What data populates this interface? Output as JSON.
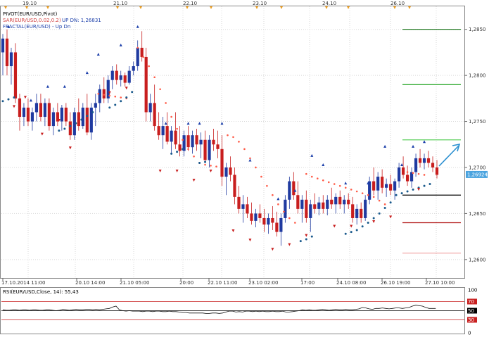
{
  "legend": {
    "line1": "PIVOT(EUR/USD,Pivot)",
    "line2": "SAR(EUR/USD,0.02,0.2)",
    "line2_status": "UP  DN: 1,26831",
    "line3": "FRACTAL(EUR/USD) - Up  Dn"
  },
  "top_dates": [
    "19.10",
    "21.10",
    "22.10",
    "23.10",
    "24.10",
    "26.10"
  ],
  "x_labels": [
    "17.10.2014 11:00",
    "20.10 14:00",
    "21.10 05:00",
    "20:00",
    "22.10 11:00",
    "23.10 02:00",
    "17:00",
    "24.10 08:00",
    "26.10 19:00",
    "27.10 10:00"
  ],
  "price_ticks": [
    "1,2850",
    "1,2800",
    "1,2750",
    "1,2700",
    "1,2650",
    "1,2600"
  ],
  "current_price": "1,26924",
  "rsi": {
    "title": "RSI(EUR/USD,Close, 14): 55,43",
    "ticks": [
      "100",
      "70",
      "50",
      "30",
      "0"
    ]
  },
  "colors": {
    "bull": "#1f3aa0",
    "bear": "#c81e1e",
    "sar_bear": "#ff5a46",
    "sar_bull": "#1a5a8c",
    "fractal_up": "#1c3faa",
    "fractal_dn": "#c81e1e",
    "price_label_bg": "#4aa3df"
  },
  "chart_data": {
    "type": "candlestick",
    "ylim": [
      1.258,
      1.2875
    ],
    "ohlc": [
      [
        1.2825,
        1.2845,
        1.28,
        1.284
      ],
      [
        1.284,
        1.285,
        1.28,
        1.281
      ],
      [
        1.281,
        1.283,
        1.279,
        1.2825
      ],
      [
        1.2825,
        1.2835,
        1.277,
        1.2775
      ],
      [
        1.2775,
        1.278,
        1.274,
        1.2755
      ],
      [
        1.2755,
        1.277,
        1.2745,
        1.2765
      ],
      [
        1.2765,
        1.2775,
        1.2745,
        1.275
      ],
      [
        1.275,
        1.2765,
        1.274,
        1.276
      ],
      [
        1.276,
        1.278,
        1.275,
        1.277
      ],
      [
        1.277,
        1.278,
        1.275,
        1.2755
      ],
      [
        1.2755,
        1.2775,
        1.2745,
        1.277
      ],
      [
        1.277,
        1.2775,
        1.274,
        1.2745
      ],
      [
        1.2745,
        1.2765,
        1.2735,
        1.276
      ],
      [
        1.276,
        1.277,
        1.2745,
        1.275
      ],
      [
        1.275,
        1.2768,
        1.274,
        1.2765
      ],
      [
        1.2765,
        1.277,
        1.2745,
        1.275
      ],
      [
        1.275,
        1.276,
        1.273,
        1.2735
      ],
      [
        1.2735,
        1.2765,
        1.273,
        1.276
      ],
      [
        1.276,
        1.2775,
        1.274,
        1.2745
      ],
      [
        1.2745,
        1.277,
        1.2742,
        1.2765
      ],
      [
        1.2765,
        1.278,
        1.2735,
        1.2738
      ],
      [
        1.2738,
        1.277,
        1.273,
        1.2765
      ],
      [
        1.2765,
        1.278,
        1.2745,
        1.277
      ],
      [
        1.277,
        1.279,
        1.276,
        1.2785
      ],
      [
        1.2785,
        1.2798,
        1.277,
        1.2775
      ],
      [
        1.2775,
        1.28,
        1.277,
        1.2795
      ],
      [
        1.2795,
        1.281,
        1.2785,
        1.2805
      ],
      [
        1.2805,
        1.2812,
        1.279,
        1.2795
      ],
      [
        1.2795,
        1.2805,
        1.2788,
        1.28
      ],
      [
        1.28,
        1.2803,
        1.2788,
        1.2792
      ],
      [
        1.2792,
        1.281,
        1.279,
        1.2805
      ],
      [
        1.2805,
        1.2815,
        1.28,
        1.281
      ],
      [
        1.281,
        1.2838,
        1.2805,
        1.283
      ],
      [
        1.283,
        1.2848,
        1.2815,
        1.282
      ],
      [
        1.282,
        1.283,
        1.275,
        1.276
      ],
      [
        1.276,
        1.278,
        1.275,
        1.277
      ],
      [
        1.277,
        1.279,
        1.274,
        1.2745
      ],
      [
        1.2745,
        1.276,
        1.273,
        1.2735
      ],
      [
        1.2735,
        1.2755,
        1.272,
        1.2745
      ],
      [
        1.2745,
        1.276,
        1.2725,
        1.2728
      ],
      [
        1.2728,
        1.2745,
        1.2715,
        1.274
      ],
      [
        1.274,
        1.276,
        1.272,
        1.2725
      ],
      [
        1.2725,
        1.2745,
        1.2712,
        1.2718
      ],
      [
        1.2718,
        1.274,
        1.2712,
        1.2735
      ],
      [
        1.2735,
        1.2745,
        1.2718,
        1.2722
      ],
      [
        1.2722,
        1.274,
        1.2715,
        1.2735
      ],
      [
        1.2735,
        1.2742,
        1.2718,
        1.2725
      ],
      [
        1.2725,
        1.2738,
        1.271,
        1.273
      ],
      [
        1.273,
        1.274,
        1.2705,
        1.2708
      ],
      [
        1.2708,
        1.2735,
        1.27,
        1.273
      ],
      [
        1.273,
        1.2742,
        1.2718,
        1.2725
      ],
      [
        1.2725,
        1.274,
        1.271,
        1.272
      ],
      [
        1.272,
        1.2735,
        1.268,
        1.269
      ],
      [
        1.269,
        1.2705,
        1.267,
        1.27
      ],
      [
        1.27,
        1.2712,
        1.2685,
        1.2692
      ],
      [
        1.2692,
        1.27,
        1.266,
        1.2668
      ],
      [
        1.2668,
        1.268,
        1.265,
        1.2655
      ],
      [
        1.2655,
        1.267,
        1.264,
        1.266
      ],
      [
        1.266,
        1.2668,
        1.2645,
        1.265
      ],
      [
        1.265,
        1.2662,
        1.2638,
        1.2642
      ],
      [
        1.2642,
        1.2655,
        1.2635,
        1.265
      ],
      [
        1.265,
        1.266,
        1.264,
        1.2645
      ],
      [
        1.2645,
        1.2655,
        1.263,
        1.2638
      ],
      [
        1.2638,
        1.265,
        1.2628,
        1.2645
      ],
      [
        1.2645,
        1.2658,
        1.2632,
        1.264
      ],
      [
        1.264,
        1.2652,
        1.2625,
        1.263
      ],
      [
        1.263,
        1.265,
        1.2615,
        1.2645
      ],
      [
        1.2645,
        1.267,
        1.264,
        1.2665
      ],
      [
        1.2665,
        1.269,
        1.2655,
        1.2685
      ],
      [
        1.2685,
        1.2695,
        1.2665,
        1.267
      ],
      [
        1.267,
        1.2685,
        1.265,
        1.2655
      ],
      [
        1.2655,
        1.267,
        1.264,
        1.2665
      ],
      [
        1.2665,
        1.2675,
        1.264,
        1.2645
      ],
      [
        1.2645,
        1.2665,
        1.263,
        1.266
      ],
      [
        1.266,
        1.2672,
        1.265,
        1.2655
      ],
      [
        1.2655,
        1.2668,
        1.2648,
        1.2662
      ],
      [
        1.2662,
        1.267,
        1.265,
        1.2655
      ],
      [
        1.2655,
        1.267,
        1.2648,
        1.2665
      ],
      [
        1.2665,
        1.2678,
        1.2655,
        1.266
      ],
      [
        1.266,
        1.2672,
        1.265,
        1.2668
      ],
      [
        1.2668,
        1.2675,
        1.2655,
        1.266
      ],
      [
        1.266,
        1.267,
        1.265,
        1.2665
      ],
      [
        1.2665,
        1.2672,
        1.2655,
        1.266
      ],
      [
        1.266,
        1.2668,
        1.264,
        1.2645
      ],
      [
        1.2645,
        1.266,
        1.2638,
        1.2655
      ],
      [
        1.2655,
        1.2662,
        1.264,
        1.2645
      ],
      [
        1.2645,
        1.267,
        1.2642,
        1.2665
      ],
      [
        1.2665,
        1.269,
        1.266,
        1.2685
      ],
      [
        1.2685,
        1.27,
        1.267,
        1.2675
      ],
      [
        1.2675,
        1.2695,
        1.2665,
        1.269
      ],
      [
        1.269,
        1.2698,
        1.2672,
        1.2678
      ],
      [
        1.2678,
        1.2688,
        1.2668,
        1.2682
      ],
      [
        1.2682,
        1.2692,
        1.267,
        1.2675
      ],
      [
        1.2675,
        1.2688,
        1.2665,
        1.2685
      ],
      [
        1.2685,
        1.2705,
        1.2678,
        1.27
      ],
      [
        1.27,
        1.2712,
        1.2688,
        1.2692
      ],
      [
        1.2692,
        1.2702,
        1.268,
        1.2685
      ],
      [
        1.2685,
        1.27,
        1.2678,
        1.2695
      ],
      [
        1.2695,
        1.2715,
        1.269,
        1.271
      ],
      [
        1.271,
        1.272,
        1.27,
        1.2705
      ],
      [
        1.2705,
        1.2715,
        1.2698,
        1.271
      ],
      [
        1.271,
        1.2718,
        1.27,
        1.2705
      ],
      [
        1.2705,
        1.2712,
        1.2695,
        1.27
      ],
      [
        1.27,
        1.2708,
        1.2688,
        1.2692
      ]
    ],
    "sar_bear": [
      [
        34,
        1.278
      ],
      [
        36,
        1.2779
      ],
      [
        38,
        1.2778
      ],
      [
        40,
        1.2777
      ],
      [
        42,
        1.2776
      ],
      [
        44,
        1.2775
      ],
      [
        48,
        1.283
      ],
      [
        50,
        1.282
      ],
      [
        52,
        1.281
      ],
      [
        54,
        1.2798
      ],
      [
        56,
        1.2785
      ],
      [
        58,
        1.277
      ],
      [
        60,
        1.2755
      ],
      [
        62,
        1.2742
      ],
      [
        64,
        1.273
      ],
      [
        66,
        1.272
      ],
      [
        68,
        1.2712
      ],
      [
        70,
        1.2705
      ],
      [
        72,
        1.2703
      ],
      [
        74,
        1.2702
      ],
      [
        76,
        1.2701
      ],
      [
        80,
        1.2735
      ],
      [
        82,
        1.2733
      ],
      [
        84,
        1.2728
      ],
      [
        86,
        1.272
      ],
      [
        88,
        1.271
      ],
      [
        90,
        1.27
      ],
      [
        92,
        1.269
      ],
      [
        94,
        1.268
      ],
      [
        96,
        1.267
      ],
      [
        98,
        1.266
      ],
      [
        100,
        1.2652
      ],
      [
        102,
        1.2645
      ],
      [
        104,
        1.264
      ],
      [
        108,
        1.2693
      ],
      [
        110,
        1.269
      ],
      [
        112,
        1.2688
      ],
      [
        114,
        1.2686
      ],
      [
        116,
        1.2684
      ],
      [
        118,
        1.2682
      ],
      [
        120,
        1.268
      ],
      [
        122,
        1.2678
      ],
      [
        124,
        1.2676
      ],
      [
        126,
        1.2674
      ],
      [
        128,
        1.2672
      ],
      [
        130,
        1.267
      ],
      [
        132,
        1.2668
      ],
      [
        134,
        1.2664
      ],
      [
        136,
        1.266
      ],
      [
        144,
        1.2695
      ],
      [
        146,
        1.2694
      ],
      [
        148,
        1.2693
      ],
      [
        150,
        1.2692
      ]
    ],
    "sar_bull": [
      [
        0,
        1.2772
      ],
      [
        2,
        1.2774
      ],
      [
        4,
        1.2776
      ],
      [
        20,
        1.274
      ],
      [
        22,
        1.2742
      ],
      [
        24,
        1.2745
      ],
      [
        26,
        1.2748
      ],
      [
        28,
        1.2752
      ],
      [
        30,
        1.2756
      ],
      [
        32,
        1.276
      ],
      [
        38,
        1.2765
      ],
      [
        40,
        1.2768
      ],
      [
        42,
        1.2772
      ],
      [
        44,
        1.2776
      ],
      [
        46,
        1.2782
      ],
      [
        60,
        1.2715
      ],
      [
        62,
        1.2717
      ],
      [
        64,
        1.272
      ],
      [
        70,
        1.2705
      ],
      [
        72,
        1.2706
      ],
      [
        106,
        1.262
      ],
      [
        108,
        1.2622
      ],
      [
        110,
        1.2625
      ],
      [
        122,
        1.2628
      ],
      [
        124,
        1.263
      ],
      [
        126,
        1.2632
      ],
      [
        128,
        1.2636
      ],
      [
        130,
        1.264
      ],
      [
        132,
        1.2645
      ],
      [
        134,
        1.265
      ],
      [
        136,
        1.2656
      ],
      [
        138,
        1.2662
      ],
      [
        140,
        1.267
      ],
      [
        142,
        1.2672
      ],
      [
        144,
        1.2674
      ],
      [
        146,
        1.2676
      ],
      [
        148,
        1.2678
      ],
      [
        150,
        1.268
      ],
      [
        152,
        1.2682
      ]
    ],
    "fractals_up": [
      [
        2,
        1.285
      ],
      [
        10,
        1.277
      ],
      [
        16,
        1.2785
      ],
      [
        22,
        1.2785
      ],
      [
        30,
        1.28
      ],
      [
        34,
        1.282
      ],
      [
        42,
        1.283
      ],
      [
        48,
        1.285
      ],
      [
        58,
        1.2745
      ],
      [
        66,
        1.2745
      ],
      [
        70,
        1.2745
      ],
      [
        78,
        1.2745
      ],
      [
        88,
        1.2705
      ],
      [
        98,
        1.2663
      ],
      [
        104,
        1.2672
      ],
      [
        110,
        1.271
      ],
      [
        114,
        1.27
      ],
      [
        122,
        1.268
      ],
      [
        130,
        1.268
      ],
      [
        136,
        1.272
      ],
      [
        142,
        1.27
      ],
      [
        146,
        1.272
      ],
      [
        150,
        1.2725
      ]
    ],
    "fractals_dn": [
      [
        4,
        1.277
      ],
      [
        8,
        1.278
      ],
      [
        14,
        1.274
      ],
      [
        20,
        1.2755
      ],
      [
        24,
        1.2725
      ],
      [
        30,
        1.2745
      ],
      [
        38,
        1.2785
      ],
      [
        44,
        1.279
      ],
      [
        56,
        1.27
      ],
      [
        62,
        1.27
      ],
      [
        68,
        1.269
      ],
      [
        74,
        1.27
      ],
      [
        82,
        1.2635
      ],
      [
        88,
        1.2625
      ],
      [
        96,
        1.2615
      ],
      [
        102,
        1.262
      ],
      [
        108,
        1.263
      ],
      [
        118,
        1.264
      ],
      [
        124,
        1.264
      ],
      [
        132,
        1.2645
      ],
      [
        138,
        1.265
      ],
      [
        148,
        1.268
      ]
    ],
    "pivot_levels": [
      {
        "value": 1.285,
        "color": "#0a6a0a"
      },
      {
        "value": 1.279,
        "color": "#1aa01a"
      },
      {
        "value": 1.273,
        "color": "#5ccf5c"
      },
      {
        "value": 1.267,
        "color": "#000000"
      },
      {
        "value": 1.264,
        "color": "#b01010"
      },
      {
        "value": 1.2607,
        "color": "#f0a0a0"
      }
    ],
    "rsi_values": [
      52,
      51,
      51,
      52,
      52,
      51,
      52,
      52,
      51,
      52,
      52,
      51,
      51,
      52,
      52,
      51,
      50,
      51,
      53,
      52,
      51,
      52,
      53,
      52,
      52,
      53,
      53,
      52,
      53,
      52,
      53,
      54,
      55,
      58,
      60,
      52,
      50,
      49,
      50,
      49,
      49,
      49,
      48,
      49,
      49,
      48,
      49,
      49,
      48,
      48,
      49,
      48,
      48,
      47,
      46,
      46,
      45,
      45,
      45,
      45,
      45,
      44,
      44,
      45,
      45,
      44,
      45,
      47,
      49,
      49,
      47,
      48,
      47,
      49,
      49,
      48,
      49,
      48,
      49,
      48,
      48,
      49,
      48,
      48,
      49,
      47,
      47,
      48,
      49,
      50,
      52,
      51,
      52,
      51,
      51,
      52,
      53,
      52,
      51,
      52,
      53,
      52,
      52,
      53,
      52,
      52,
      53,
      54,
      57,
      56,
      54,
      53,
      55,
      55,
      56,
      55,
      54,
      55,
      56,
      56,
      55,
      56,
      57,
      60,
      62,
      61,
      60,
      57,
      55,
      55,
      55
    ],
    "rsi_levels": [
      70,
      50,
      30
    ]
  }
}
